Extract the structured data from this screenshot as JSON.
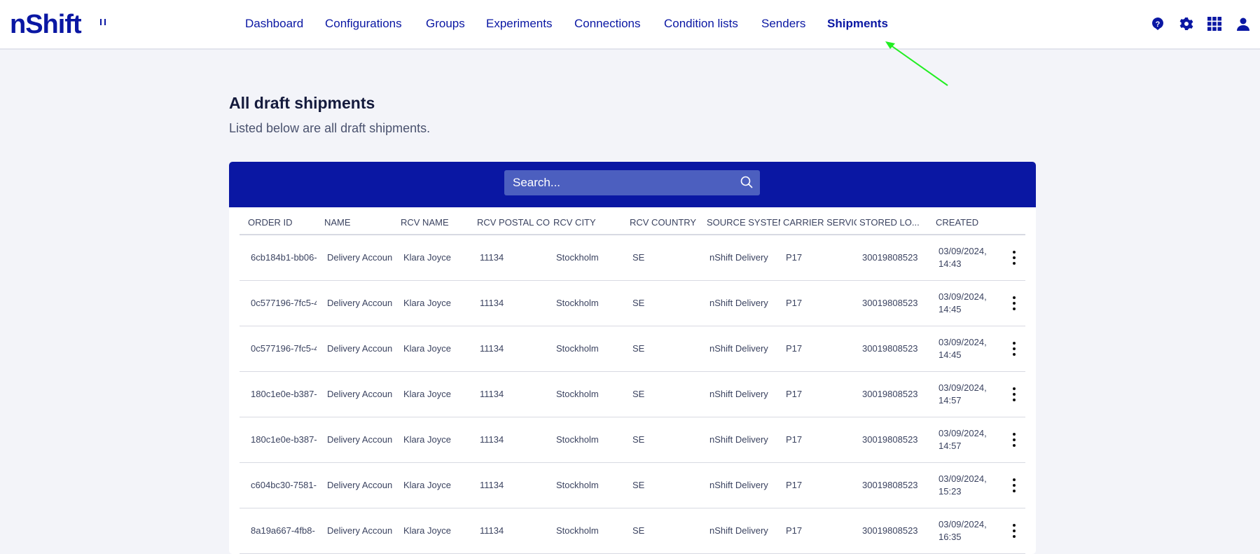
{
  "logo": "nShift",
  "nav": [
    "Dashboard",
    "Configurations",
    "Groups",
    "Experiments",
    "Connections",
    "Condition lists",
    "Senders",
    "Shipments"
  ],
  "active_nav": "Shipments",
  "header_icons": [
    "help-icon",
    "gear-icon",
    "apps-grid-icon",
    "user-icon"
  ],
  "page": {
    "title": "All draft shipments",
    "subtitle": "Listed below are all draft shipments."
  },
  "search": {
    "placeholder": "Search..."
  },
  "columns": [
    "ORDER ID",
    "NAME",
    "RCV NAME",
    "RCV POSTAL CO",
    "RCV CITY",
    "RCV COUNTRY",
    "SOURCE SYSTEM",
    "CARRIER SERVIC",
    "STORED LO...",
    "CREATED"
  ],
  "rows": [
    [
      "6cb184b1-bb06-",
      "Delivery Accoun",
      "Klara Joyce",
      "11134",
      "Stockholm",
      "SE",
      "nShift Delivery",
      "P17",
      "30019808523",
      "03/09/2024, 14:43"
    ],
    [
      "0c577196-7fc5-4",
      "Delivery Accoun",
      "Klara Joyce",
      "11134",
      "Stockholm",
      "SE",
      "nShift Delivery",
      "P17",
      "30019808523",
      "03/09/2024, 14:45"
    ],
    [
      "0c577196-7fc5-4",
      "Delivery Accoun",
      "Klara Joyce",
      "11134",
      "Stockholm",
      "SE",
      "nShift Delivery",
      "P17",
      "30019808523",
      "03/09/2024, 14:45"
    ],
    [
      "180c1e0e-b387-",
      "Delivery Accoun",
      "Klara Joyce",
      "11134",
      "Stockholm",
      "SE",
      "nShift Delivery",
      "P17",
      "30019808523",
      "03/09/2024, 14:57"
    ],
    [
      "180c1e0e-b387-",
      "Delivery Accoun",
      "Klara Joyce",
      "11134",
      "Stockholm",
      "SE",
      "nShift Delivery",
      "P17",
      "30019808523",
      "03/09/2024, 14:57"
    ],
    [
      "c604bc30-7581-",
      "Delivery Accoun",
      "Klara Joyce",
      "11134",
      "Stockholm",
      "SE",
      "nShift Delivery",
      "P17",
      "30019808523",
      "03/09/2024, 15:23"
    ],
    [
      "8a19a667-4fb8-",
      "Delivery Accoun",
      "Klara Joyce",
      "11134",
      "Stockholm",
      "SE",
      "nShift Delivery",
      "P17",
      "30019808523",
      "03/09/2024, 16:35"
    ]
  ],
  "colors": {
    "brand": "#0a17a3",
    "search_bg": "#4c5fbf",
    "annotation_arrow": "#22ee22"
  }
}
